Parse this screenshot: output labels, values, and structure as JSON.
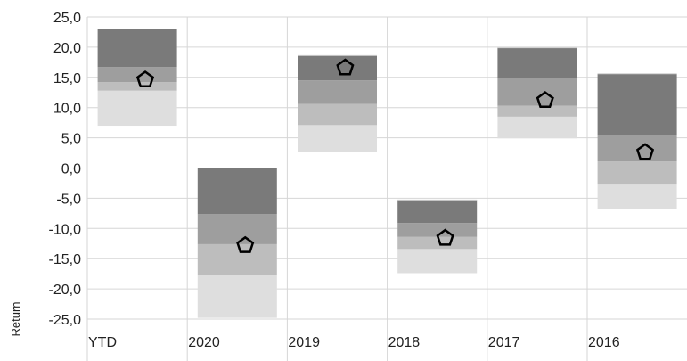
{
  "chart_data": {
    "type": "floating-bar",
    "ylabel": "Return",
    "categories": [
      "YTD",
      "2020",
      "2019",
      "2018",
      "2017",
      "2016"
    ],
    "ylim": [
      -25,
      25
    ],
    "yticks": [
      "25,0",
      "20,0",
      "15,0",
      "10,0",
      "5,0",
      "0,0",
      "-5,0",
      "-10,0",
      "-15,0",
      "-20,0",
      "-25,0"
    ],
    "grid": true,
    "band_colors": [
      "#dedede",
      "#bdbdbd",
      "#9e9e9e",
      "#7a7a7a"
    ],
    "marker_shape": "pentagon",
    "series": [
      {
        "category": "YTD",
        "bands": [
          7.0,
          12.8,
          14.2,
          16.7,
          23.0
        ],
        "marker": 14.6
      },
      {
        "category": "2020",
        "bands": [
          -24.8,
          -17.7,
          -12.6,
          -7.6,
          0.0
        ],
        "marker": -12.8
      },
      {
        "category": "2019",
        "bands": [
          2.6,
          7.1,
          10.6,
          14.5,
          18.6
        ],
        "marker": 16.6
      },
      {
        "category": "2018",
        "bands": [
          -17.4,
          -13.4,
          -11.4,
          -9.1,
          -5.3
        ],
        "marker": -11.6
      },
      {
        "category": "2017",
        "bands": [
          4.9,
          8.5,
          10.3,
          14.9,
          19.9
        ],
        "marker": 11.2
      },
      {
        "category": "2016",
        "bands": [
          -6.8,
          -2.6,
          1.1,
          5.5,
          15.6
        ],
        "marker": 2.6
      }
    ]
  }
}
